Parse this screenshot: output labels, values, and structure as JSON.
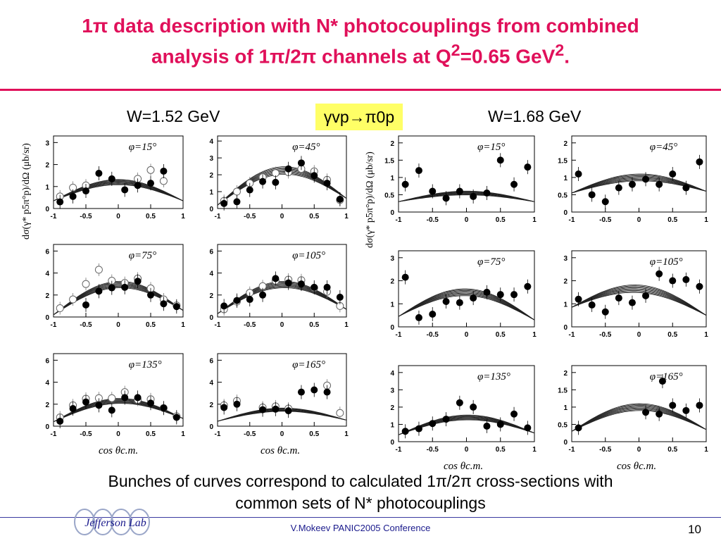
{
  "title": {
    "line1": "1π data description with N* photocouplings from combined",
    "line2": "analysis of 1π/2π channels at Q",
    "line2_sup1": "2",
    "line2_mid": "=0.65 GeV",
    "line2_sup2": "2",
    "line2_end": "."
  },
  "header": {
    "w_left": "W=1.52 GeV",
    "w_right": "W=1.68 GeV",
    "reaction": "γvp→π0p"
  },
  "y_axis_label": "dσ(γ* p5π°p)/dΩ (μb/sr)",
  "x_axis_label": "cos θc.m.",
  "caption": {
    "line1": "Bunches of curves correspond to calculated 1π/2π cross-sections with",
    "line2": "common sets of  N* photocouplings"
  },
  "footer": {
    "logo": "Jefferson Lab",
    "conference": "V.Mokeev  PANIC2005 Conference",
    "page": "10"
  },
  "colors": {
    "title": "#e0105a",
    "highlight": "#ffff66",
    "footer": "#1a1a8c"
  },
  "chart_data": [
    {
      "type": "scatter",
      "panel": "W=1.52 GeV",
      "label": "φ=15°",
      "xlim": [
        -1,
        1
      ],
      "ylim": [
        0,
        3.3
      ],
      "yticks": [
        0,
        1,
        2,
        3
      ],
      "xticks": [
        -1,
        -0.5,
        0,
        0.5,
        1
      ],
      "filled": [
        [
          -0.9,
          0.3
        ],
        [
          -0.7,
          0.55
        ],
        [
          -0.5,
          0.8
        ],
        [
          -0.3,
          1.6
        ],
        [
          -0.1,
          1.35
        ],
        [
          0.1,
          0.85
        ],
        [
          0.3,
          1.05
        ],
        [
          0.5,
          1.15
        ],
        [
          0.7,
          1.7
        ]
      ],
      "open": [
        [
          -0.9,
          0.55
        ],
        [
          -0.7,
          0.95
        ],
        [
          -0.5,
          1.05
        ],
        [
          0.3,
          1.35
        ],
        [
          0.5,
          1.75
        ],
        [
          0.7,
          1.25
        ]
      ],
      "curve_peak": 1.2,
      "curve_left": 0.35,
      "curve_right": 0.35
    },
    {
      "type": "scatter",
      "panel": "W=1.52 GeV",
      "label": "φ=45°",
      "xlim": [
        -1,
        1
      ],
      "ylim": [
        0,
        4.3
      ],
      "yticks": [
        0,
        1,
        2,
        3,
        4
      ],
      "xticks": [
        -1,
        -0.5,
        0,
        0.5,
        1
      ],
      "filled": [
        [
          -0.9,
          0.3
        ],
        [
          -0.7,
          0.4
        ],
        [
          -0.5,
          1.1
        ],
        [
          -0.3,
          1.6
        ],
        [
          -0.1,
          1.55
        ],
        [
          0.1,
          2.35
        ],
        [
          0.3,
          2.7
        ],
        [
          0.5,
          1.95
        ],
        [
          0.7,
          1.5
        ],
        [
          0.9,
          0.55
        ]
      ],
      "open": [
        [
          -0.9,
          0.45
        ],
        [
          -0.7,
          1.0
        ],
        [
          -0.5,
          1.5
        ],
        [
          -0.3,
          1.85
        ],
        [
          -0.1,
          2.1
        ],
        [
          0.1,
          2.15
        ],
        [
          0.3,
          2.35
        ],
        [
          0.5,
          2.2
        ],
        [
          0.7,
          1.7
        ],
        [
          0.9,
          0.5
        ]
      ],
      "curve_peak": 2.25,
      "curve_left": 0.2,
      "curve_right": 0.6
    },
    {
      "type": "scatter",
      "panel": "W=1.52 GeV",
      "label": "φ=75°",
      "xlim": [
        -1,
        1
      ],
      "ylim": [
        0,
        6.6
      ],
      "yticks": [
        0,
        2,
        4,
        6
      ],
      "xticks": [
        -1,
        -0.5,
        0,
        0.5,
        1
      ],
      "filled": [
        [
          -0.5,
          1.1
        ],
        [
          -0.3,
          2.35
        ],
        [
          -0.1,
          2.65
        ],
        [
          0.1,
          2.7
        ],
        [
          0.3,
          3.25
        ],
        [
          0.5,
          2.0
        ],
        [
          0.7,
          1.2
        ],
        [
          0.9,
          0.95
        ]
      ],
      "open": [
        [
          -0.9,
          0.8
        ],
        [
          -0.7,
          1.6
        ],
        [
          -0.5,
          3.0
        ],
        [
          -0.3,
          4.3
        ],
        [
          -0.1,
          3.3
        ],
        [
          0.1,
          3.1
        ],
        [
          0.3,
          3.5
        ],
        [
          0.5,
          2.6
        ],
        [
          0.7,
          1.6
        ],
        [
          0.9,
          1.05
        ]
      ],
      "curve_peak": 2.95,
      "curve_left": 0.2,
      "curve_right": 0.6
    },
    {
      "type": "scatter",
      "panel": "W=1.52 GeV",
      "label": "φ=105°",
      "xlim": [
        -1,
        1
      ],
      "ylim": [
        0,
        6.6
      ],
      "yticks": [
        0,
        2,
        4,
        6
      ],
      "xticks": [
        -1,
        -0.5,
        0,
        0.5,
        1
      ],
      "filled": [
        [
          -0.9,
          1.0
        ],
        [
          -0.7,
          1.5
        ],
        [
          -0.5,
          1.6
        ],
        [
          -0.3,
          2.0
        ],
        [
          -0.1,
          3.5
        ],
        [
          0.1,
          3.1
        ],
        [
          0.3,
          3.0
        ],
        [
          0.5,
          2.7
        ],
        [
          0.7,
          2.7
        ],
        [
          0.9,
          1.8
        ]
      ],
      "open": [
        [
          -0.9,
          0.7
        ],
        [
          -0.7,
          1.4
        ],
        [
          -0.5,
          2.2
        ],
        [
          -0.3,
          2.8
        ],
        [
          -0.1,
          3.3
        ],
        [
          0.1,
          3.4
        ],
        [
          0.3,
          3.35
        ],
        [
          0.5,
          2.65
        ],
        [
          0.7,
          2.3
        ],
        [
          0.9,
          1.0
        ]
      ],
      "curve_peak": 2.95,
      "curve_left": 0.3,
      "curve_right": 0.7
    },
    {
      "type": "scatter",
      "panel": "W=1.52 GeV",
      "label": "φ=135°",
      "xlim": [
        -1,
        1
      ],
      "ylim": [
        0,
        6.6
      ],
      "yticks": [
        0,
        2,
        4,
        6
      ],
      "xticks": [
        -1,
        -0.5,
        0,
        0.5,
        1
      ],
      "filled": [
        [
          -0.9,
          0.45
        ],
        [
          -0.7,
          1.6
        ],
        [
          -0.5,
          2.2
        ],
        [
          -0.3,
          1.9
        ],
        [
          -0.1,
          1.45
        ],
        [
          0.1,
          2.6
        ],
        [
          0.3,
          2.6
        ],
        [
          0.5,
          2.1
        ],
        [
          0.7,
          1.65
        ],
        [
          0.9,
          0.8
        ]
      ],
      "open": [
        [
          -0.9,
          0.8
        ],
        [
          -0.7,
          1.9
        ],
        [
          -0.5,
          2.5
        ],
        [
          -0.3,
          2.55
        ],
        [
          -0.1,
          2.55
        ],
        [
          0.1,
          3.1
        ],
        [
          0.3,
          2.4
        ],
        [
          0.5,
          2.45
        ],
        [
          0.7,
          1.65
        ],
        [
          0.9,
          0.9
        ]
      ],
      "curve_peak": 2.3,
      "curve_left": 0.4,
      "curve_right": 0.7
    },
    {
      "type": "scatter",
      "panel": "W=1.52 GeV",
      "label": "φ=165°",
      "xlim": [
        -1,
        1
      ],
      "ylim": [
        0,
        6.6
      ],
      "yticks": [
        0,
        2,
        4,
        6
      ],
      "xticks": [
        -1,
        -0.5,
        0,
        0.5,
        1
      ],
      "filled": [
        [
          -0.9,
          1.7
        ],
        [
          -0.7,
          2.0
        ],
        [
          -0.3,
          1.5
        ],
        [
          -0.1,
          1.55
        ],
        [
          0.1,
          1.4
        ],
        [
          0.3,
          3.1
        ],
        [
          0.5,
          3.3
        ],
        [
          0.7,
          3.1
        ]
      ],
      "open": [
        [
          -0.9,
          1.9
        ],
        [
          -0.7,
          2.3
        ],
        [
          -0.3,
          1.7
        ],
        [
          -0.1,
          1.8
        ],
        [
          0.1,
          1.6
        ],
        [
          0.7,
          3.7
        ],
        [
          0.9,
          1.2
        ]
      ],
      "curve_peak": 1.5,
      "curve_left": 0.45,
      "curve_right": 0.55
    },
    {
      "type": "scatter",
      "panel": "W=1.68 GeV",
      "label": "φ=15°",
      "xlim": [
        -1,
        1
      ],
      "ylim": [
        0,
        2.2
      ],
      "yticks": [
        0,
        0.5,
        1,
        1.5,
        2
      ],
      "xticks": [
        -1,
        -0.5,
        0,
        0.5,
        1
      ],
      "filled": [
        [
          -0.9,
          0.8
        ],
        [
          -0.7,
          1.2
        ],
        [
          -0.5,
          0.6
        ],
        [
          -0.3,
          0.4
        ],
        [
          -0.1,
          0.6
        ],
        [
          0.1,
          0.45
        ],
        [
          0.3,
          0.55
        ],
        [
          0.5,
          1.5
        ],
        [
          0.7,
          0.8
        ],
        [
          0.9,
          1.3
        ]
      ],
      "open": [],
      "curve_peak": 0.55,
      "curve_left": 0.3,
      "curve_right": 0.3
    },
    {
      "type": "scatter",
      "panel": "W=1.68 GeV",
      "label": "φ=45°",
      "xlim": [
        -1,
        1
      ],
      "ylim": [
        0,
        2.2
      ],
      "yticks": [
        0,
        0.5,
        1,
        1.5,
        2
      ],
      "xticks": [
        -1,
        -0.5,
        0,
        0.5,
        1
      ],
      "filled": [
        [
          -0.9,
          1.1
        ],
        [
          -0.7,
          0.5
        ],
        [
          -0.5,
          0.3
        ],
        [
          -0.3,
          0.7
        ],
        [
          -0.1,
          0.8
        ],
        [
          0.1,
          0.95
        ],
        [
          0.3,
          0.8
        ],
        [
          0.5,
          1.1
        ],
        [
          0.7,
          0.7
        ],
        [
          0.9,
          1.45
        ]
      ],
      "open": [],
      "curve_peak": 1.0,
      "curve_left": 0.55,
      "curve_right": 0.6
    },
    {
      "type": "scatter",
      "panel": "W=1.68 GeV",
      "label": "φ=75°",
      "xlim": [
        -1,
        1
      ],
      "ylim": [
        0,
        3.3
      ],
      "yticks": [
        0,
        1,
        2,
        3
      ],
      "xticks": [
        -1,
        -0.5,
        0,
        0.5,
        1
      ],
      "filled": [
        [
          -0.9,
          2.15
        ],
        [
          -0.7,
          0.4
        ],
        [
          -0.5,
          0.55
        ],
        [
          -0.3,
          1.1
        ],
        [
          -0.1,
          1.05
        ],
        [
          0.1,
          1.25
        ],
        [
          0.3,
          1.5
        ],
        [
          0.5,
          1.4
        ],
        [
          0.7,
          1.4
        ],
        [
          0.9,
          1.75
        ]
      ],
      "open": [],
      "curve_peak": 1.5,
      "curve_left": 0.45,
      "curve_right": 0.3
    },
    {
      "type": "scatter",
      "panel": "W=1.68 GeV",
      "label": "φ=105°",
      "xlim": [
        -1,
        1
      ],
      "ylim": [
        0,
        3.3
      ],
      "yticks": [
        0,
        1,
        2,
        3
      ],
      "xticks": [
        -1,
        -0.5,
        0,
        0.5,
        1
      ],
      "filled": [
        [
          -0.9,
          1.2
        ],
        [
          -0.7,
          0.95
        ],
        [
          -0.5,
          0.65
        ],
        [
          -0.3,
          1.25
        ],
        [
          -0.1,
          1.05
        ],
        [
          0.1,
          1.35
        ],
        [
          0.3,
          2.3
        ],
        [
          0.5,
          2.0
        ],
        [
          0.7,
          2.05
        ],
        [
          0.9,
          1.75
        ]
      ],
      "open": [],
      "curve_peak": 1.65,
      "curve_left": 0.85,
      "curve_right": 0.5
    },
    {
      "type": "scatter",
      "panel": "W=1.68 GeV",
      "label": "φ=135°",
      "xlim": [
        -1,
        1
      ],
      "ylim": [
        0,
        4.4
      ],
      "yticks": [
        0,
        1,
        2,
        3,
        4
      ],
      "xticks": [
        -1,
        -0.5,
        0,
        0.5,
        1
      ],
      "filled": [
        [
          -0.9,
          0.6
        ],
        [
          -0.7,
          0.75
        ],
        [
          -0.5,
          1.05
        ],
        [
          -0.3,
          1.3
        ],
        [
          -0.1,
          2.25
        ],
        [
          0.1,
          2.0
        ],
        [
          0.3,
          0.9
        ],
        [
          0.5,
          1.0
        ],
        [
          0.7,
          1.6
        ],
        [
          0.9,
          0.8
        ]
      ],
      "open": [],
      "curve_peak": 1.4,
      "curve_left": 0.4,
      "curve_right": 0.5
    },
    {
      "type": "scatter",
      "panel": "W=1.68 GeV",
      "label": "φ=165°",
      "xlim": [
        -1,
        1
      ],
      "ylim": [
        0,
        2.2
      ],
      "yticks": [
        0,
        0.5,
        1,
        1.5,
        2
      ],
      "xticks": [
        -1,
        -0.5,
        0,
        0.5,
        1
      ],
      "filled": [
        [
          -0.9,
          0.4
        ],
        [
          0.1,
          0.85
        ],
        [
          0.3,
          0.8
        ],
        [
          0.35,
          1.75
        ],
        [
          0.5,
          1.05
        ],
        [
          0.7,
          0.9
        ],
        [
          0.9,
          1.05
        ]
      ],
      "open": [],
      "curve_peak": 1.0,
      "curve_left": 0.3,
      "curve_right": 0.35
    }
  ]
}
